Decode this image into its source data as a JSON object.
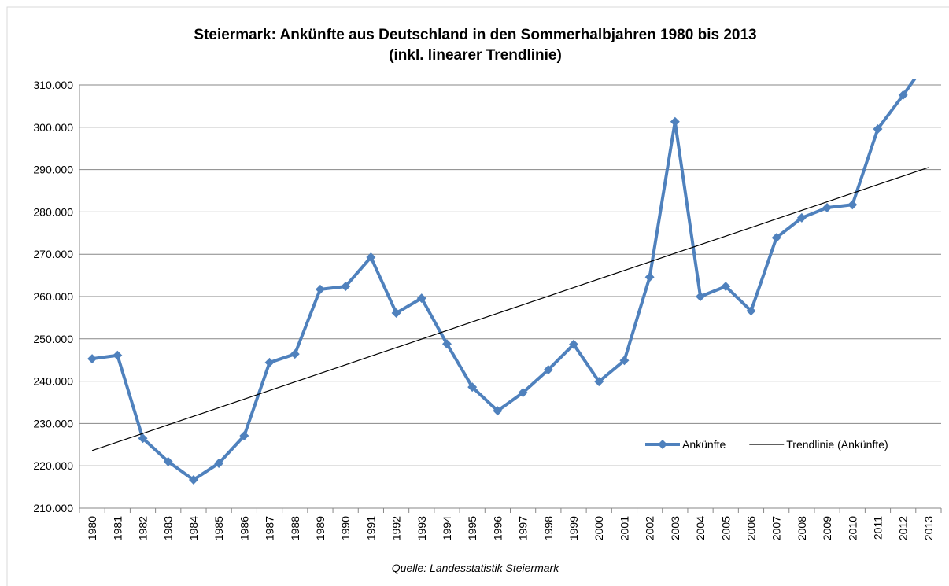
{
  "chart_data": {
    "type": "line",
    "title": "Steiermark: Ankünfte aus Deutschland in den Sommerhalbjahren 1980 bis 2013",
    "subtitle": "(inkl. linearer Trendlinie)",
    "source": "Quelle: Landesstatistik Steiermark",
    "categories": [
      "1980",
      "1981",
      "1982",
      "1983",
      "1984",
      "1985",
      "1986",
      "1987",
      "1988",
      "1989",
      "1990",
      "1991",
      "1992",
      "1993",
      "1994",
      "1995",
      "1996",
      "1997",
      "1998",
      "1999",
      "2000",
      "2001",
      "2002",
      "2003",
      "2004",
      "2005",
      "2006",
      "2007",
      "2008",
      "2009",
      "2010",
      "2011",
      "2012",
      "2013"
    ],
    "series": [
      {
        "name": "Ankünfte",
        "color": "#4f81bd",
        "markers": true,
        "values": [
          245300,
          246100,
          226500,
          221000,
          216700,
          220600,
          227100,
          244400,
          246400,
          261700,
          262400,
          269300,
          256100,
          259600,
          248800,
          238600,
          233000,
          237300,
          242700,
          248700,
          239900,
          244900,
          264600,
          301300,
          260000,
          262400,
          256600,
          273900,
          278600,
          281000,
          281700,
          299600,
          307600,
          316000
        ]
      },
      {
        "name": "Trendlinie (Ankünfte)",
        "color": "#000000",
        "markers": false,
        "values": [
          223600,
          225627,
          227655,
          229682,
          231709,
          233736,
          235764,
          237791,
          239818,
          241845,
          243873,
          245900,
          247927,
          249955,
          251982,
          254009,
          256036,
          258064,
          260091,
          262118,
          264145,
          266173,
          268200,
          270227,
          272255,
          274282,
          276309,
          278336,
          280364,
          282391,
          284418,
          286445,
          288473,
          290500
        ]
      }
    ],
    "ylim": [
      210000,
      310000
    ],
    "yticks": [
      {
        "value": 210000,
        "label": "210.000"
      },
      {
        "value": 220000,
        "label": "220.000"
      },
      {
        "value": 230000,
        "label": "230.000"
      },
      {
        "value": 240000,
        "label": "240.000"
      },
      {
        "value": 250000,
        "label": "250.000"
      },
      {
        "value": 260000,
        "label": "260.000"
      },
      {
        "value": 270000,
        "label": "270.000"
      },
      {
        "value": 280000,
        "label": "280.000"
      },
      {
        "value": 290000,
        "label": "290.000"
      },
      {
        "value": 300000,
        "label": "300.000"
      },
      {
        "value": 310000,
        "label": "310.000"
      }
    ],
    "grid": true,
    "legend": "lower right"
  }
}
